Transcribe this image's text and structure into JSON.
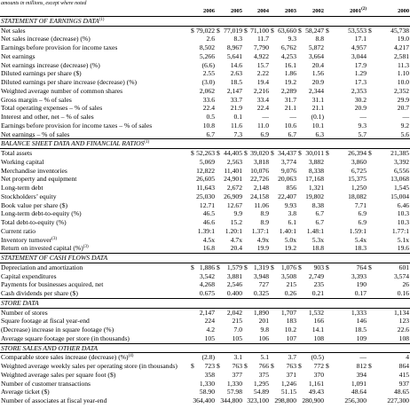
{
  "header": {
    "note": "amounts in millions, except where noted"
  },
  "columns": [
    {
      "year": "2006"
    },
    {
      "year": "2005"
    },
    {
      "year": "2004"
    },
    {
      "year": "2003"
    },
    {
      "year": "2002"
    },
    {
      "year": "2001",
      "footnote": "(2)"
    },
    {
      "year": "2000"
    }
  ],
  "sections": [
    {
      "title": "STATEMENT OF EARNINGS DATA",
      "footnote": "(1)",
      "rows": [
        {
          "label": "Net sales",
          "currency": "$",
          "cells": [
            "79,022",
            "77,019",
            "71,100",
            "63,660",
            "58,247",
            "53,553",
            "45,738"
          ]
        },
        {
          "label": "Net sales increase (decrease) (%)",
          "cells": [
            "2.6",
            "8.3",
            "11.7",
            "9.3",
            "8.8",
            "17.1",
            "19.0"
          ]
        },
        {
          "label": "Earnings before provision for income taxes",
          "cells": [
            "8,502",
            "8,967",
            "7,790",
            "6,762",
            "5,872",
            "4,957",
            "4,217"
          ]
        },
        {
          "label": "Net earnings",
          "cells": [
            "5,266",
            "5,641",
            "4,922",
            "4,253",
            "3,664",
            "3,044",
            "2,581"
          ]
        },
        {
          "label": "Net earnings increase (decrease) (%)",
          "cells": [
            "(6.6)",
            "14.6",
            "15.7",
            "16.1",
            "20.4",
            "17.9",
            "11.3"
          ]
        },
        {
          "label": "Diluted earnings per share ($)",
          "cells": [
            "2.55",
            "2.63",
            "2.22",
            "1.86",
            "1.56",
            "1.29",
            "1.10"
          ]
        },
        {
          "label": "Diluted earnings per share increase (decrease) (%)",
          "cells": [
            "(3.0)",
            "18.5",
            "19.4",
            "19.2",
            "20.9",
            "17.3",
            "10.0"
          ]
        },
        {
          "label": "Weighted average number of common shares",
          "cells": [
            "2,062",
            "2,147",
            "2,216",
            "2,289",
            "2,344",
            "2,353",
            "2,352"
          ]
        },
        {
          "label": "Gross margin – % of sales",
          "cells": [
            "33.6",
            "33.7",
            "33.4",
            "31.7",
            "31.1",
            "30.2",
            "29.9"
          ]
        },
        {
          "label": "Total operating expenses – % of sales",
          "cells": [
            "22.4",
            "21.9",
            "22.4",
            "21.1",
            "21.1",
            "20.9",
            "20.7"
          ]
        },
        {
          "label": "Interest and other, net – % of sales",
          "cells": [
            "0.5",
            "0.1",
            "—",
            "—",
            "(0.1)",
            "—",
            "—"
          ]
        },
        {
          "label": "Earnings before provision for income taxes – % of sales",
          "cells": [
            "10.8",
            "11.6",
            "11.0",
            "10.6",
            "10.1",
            "9.3",
            "9.2"
          ]
        },
        {
          "label": "Net earnings – % of sales",
          "cells": [
            "6.7",
            "7.3",
            "6.9",
            "6.7",
            "6.3",
            "5.7",
            "5.6"
          ]
        }
      ]
    },
    {
      "title": "BALANCE SHEET DATA AND FINANCIAL RATIOS",
      "footnote": "(1)",
      "rows": [
        {
          "label": "Total assets",
          "currency": "$",
          "cells": [
            "52,263",
            "44,405",
            "39,020",
            "34,437",
            "30,011",
            "26,394",
            "21,385"
          ]
        },
        {
          "label": "Working capital",
          "cells": [
            "5,069",
            "2,563",
            "3,818",
            "3,774",
            "3,882",
            "3,860",
            "3,392"
          ]
        },
        {
          "label": "Merchandise inventories",
          "cells": [
            "12,822",
            "11,401",
            "10,076",
            "9,076",
            "8,338",
            "6,725",
            "6,556"
          ]
        },
        {
          "label": "Net property and equipment",
          "cells": [
            "26,605",
            "24,901",
            "22,726",
            "20,063",
            "17,168",
            "15,375",
            "13,068"
          ]
        },
        {
          "label": "Long-term debt",
          "cells": [
            "11,643",
            "2,672",
            "2,148",
            "856",
            "1,321",
            "1,250",
            "1,545"
          ]
        },
        {
          "label": "Stockholders’ equity",
          "cells": [
            "25,030",
            "26,909",
            "24,158",
            "22,407",
            "19,802",
            "18,082",
            "15,004"
          ]
        },
        {
          "label": "Book value per share ($)",
          "cells": [
            "12.71",
            "12.67",
            "11.06",
            "9.93",
            "8.38",
            "7.71",
            "6.46"
          ]
        },
        {
          "label": "Long-term debt-to-equity (%)",
          "cells": [
            "46.5",
            "9.9",
            "8.9",
            "3.8",
            "6.7",
            "6.9",
            "10.3"
          ]
        },
        {
          "label": "Total debt-to-equity (%)",
          "cells": [
            "46.6",
            "15.2",
            "8.9",
            "6.1",
            "6.7",
            "6.9",
            "10.3"
          ]
        },
        {
          "label": "Current ratio",
          "cells": [
            "1.39:1",
            "1.20:1",
            "1.37:1",
            "1.40:1",
            "1.48:1",
            "1.59:1",
            "1.77:1"
          ]
        },
        {
          "label": "Inventory turnover",
          "footnote": "(3)",
          "cells": [
            "4.5x",
            "4.7x",
            "4.9x",
            "5.0x",
            "5.3x",
            "5.4x",
            "5.1x"
          ]
        },
        {
          "label": "Return on invested capital (%)",
          "footnote": "(3)",
          "cells": [
            "16.8",
            "20.4",
            "19.9",
            "19.2",
            "18.8",
            "18.3",
            "19.6"
          ]
        }
      ]
    },
    {
      "title": "STATEMENT OF CASH FLOWS DATA",
      "rows": [
        {
          "label": "Depreciation and amortization",
          "currency": "$",
          "cells": [
            "1,886",
            "1,579",
            "1,319",
            "1,076",
            "903",
            "764",
            "601"
          ]
        },
        {
          "label": "Capital expenditures",
          "cells": [
            "3,542",
            "3,881",
            "3,948",
            "3,508",
            "2,749",
            "3,393",
            "3,574"
          ]
        },
        {
          "label": "Payments for businesses acquired, net",
          "cells": [
            "4,268",
            "2,546",
            "727",
            "215",
            "235",
            "190",
            "26"
          ]
        },
        {
          "label": "Cash dividends per share ($)",
          "cells": [
            "0.675",
            "0.400",
            "0.325",
            "0.26",
            "0.21",
            "0.17",
            "0.16"
          ]
        }
      ]
    },
    {
      "title": "STORE DATA",
      "rows": [
        {
          "label": "Number of stores",
          "cells": [
            "2,147",
            "2,042",
            "1,890",
            "1,707",
            "1,532",
            "1,333",
            "1,134"
          ]
        },
        {
          "label": "Square footage at fiscal year-end",
          "cells": [
            "224",
            "215",
            "201",
            "183",
            "166",
            "146",
            "123"
          ]
        },
        {
          "label": "(Decrease) increase in square footage (%)",
          "cells": [
            "4.2",
            "7.0",
            "9.8",
            "10.2",
            "14.1",
            "18.5",
            "22.6"
          ]
        },
        {
          "label": "Average square footage per store (in thousands)",
          "cells": [
            "105",
            "105",
            "106",
            "107",
            "108",
            "109",
            "108"
          ]
        }
      ]
    },
    {
      "title": "STORE SALES AND OTHER DATA",
      "rows": [
        {
          "label": "Comparable store sales increase (decrease) (%)",
          "footnote": "(4)",
          "cells": [
            "(2.8)",
            "3.1",
            "5.1",
            "3.7",
            "(0.5)",
            "—",
            "4"
          ]
        },
        {
          "label": "Weighted average weekly sales per operating store (in thousands)",
          "currency": "$",
          "cells": [
            "723",
            "763",
            "766",
            "763",
            "772",
            "812",
            "864"
          ]
        },
        {
          "label": "Weighted average sales per square foot ($)",
          "cells": [
            "358",
            "377",
            "375",
            "371",
            "370",
            "394",
            "415"
          ]
        },
        {
          "label": "Number of customer transactions",
          "cells": [
            "1,330",
            "1,330",
            "1,295",
            "1,246",
            "1,161",
            "1,091",
            "937"
          ]
        },
        {
          "label": "Average ticket ($)",
          "cells": [
            "58.90",
            "57.98",
            "54.89",
            "51.15",
            "49.43",
            "48.64",
            "48.65"
          ]
        },
        {
          "label": "Number of associates at fiscal year-end",
          "cells": [
            "364,400",
            "344,800",
            "323,100",
            "298,800",
            "280,900",
            "256,300",
            "227,300"
          ]
        }
      ]
    }
  ]
}
